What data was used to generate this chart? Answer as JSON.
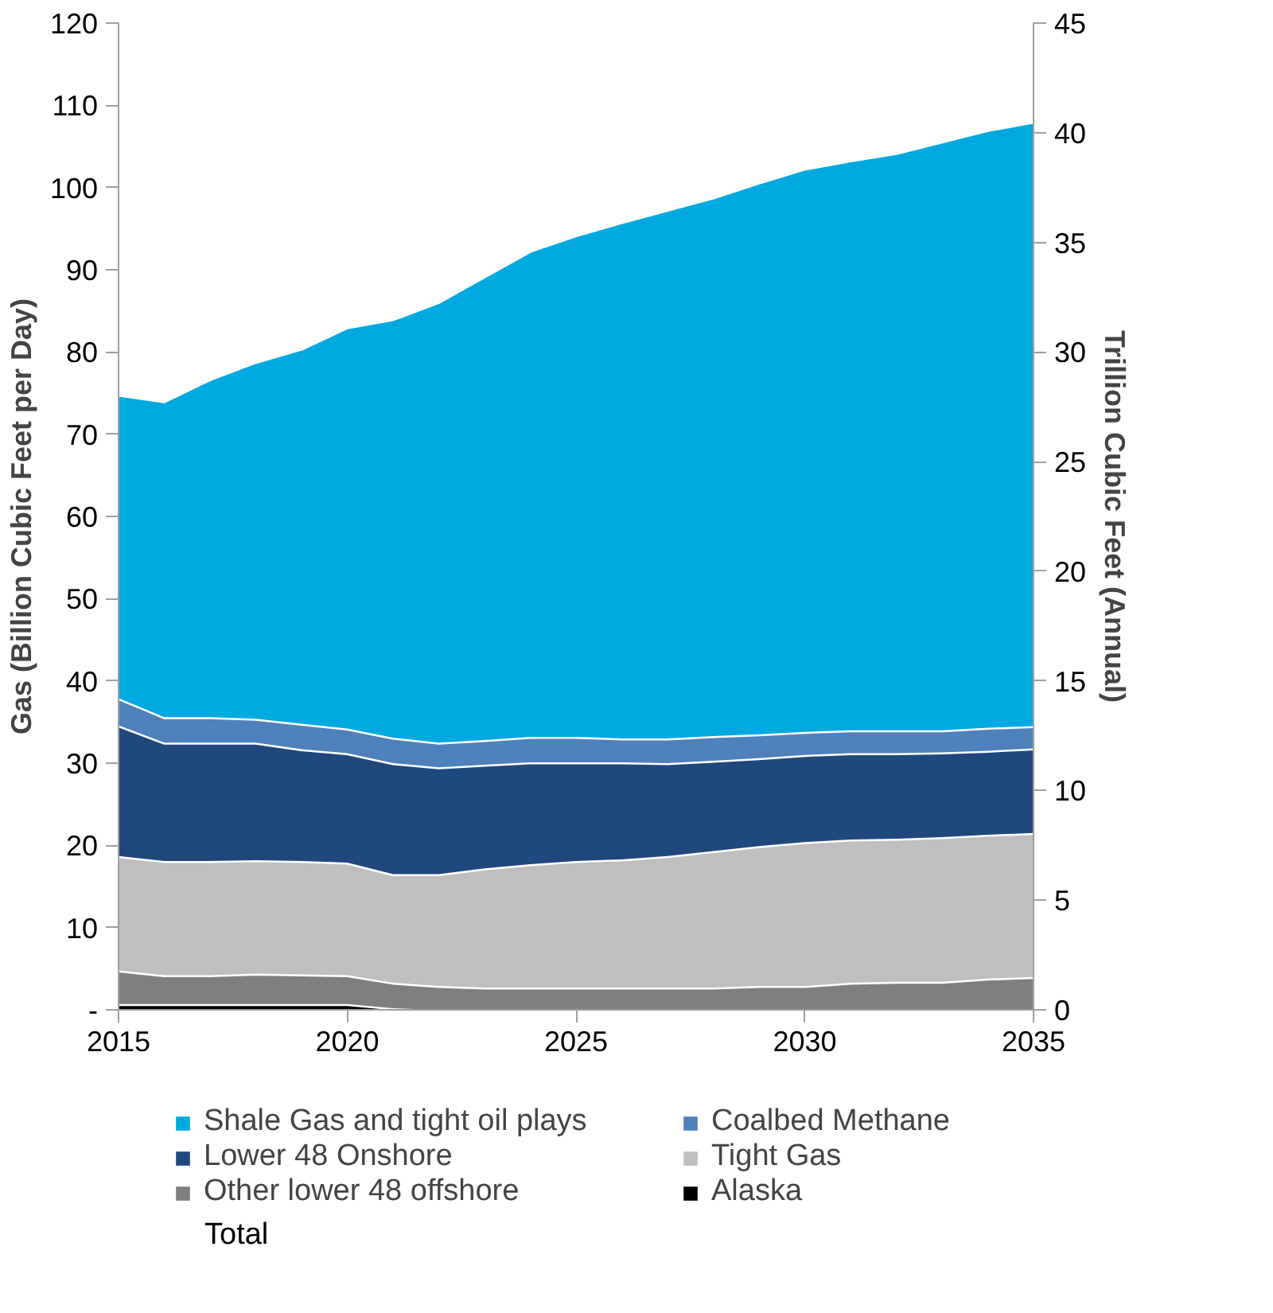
{
  "chart_data": {
    "type": "area",
    "stacked": true,
    "ylabel": "Gas (Billion Cubic Feet per Day)",
    "y2label": "Trillion Cubic Feet (Annual)",
    "x": [
      2015,
      2016,
      2017,
      2018,
      2019,
      2020,
      2021,
      2022,
      2023,
      2024,
      2025,
      2026,
      2027,
      2028,
      2029,
      2030,
      2031,
      2032,
      2033,
      2034,
      2035
    ],
    "xlim": [
      2015,
      2035
    ],
    "xticks": [
      2015,
      2020,
      2025,
      2030,
      2035
    ],
    "ylim": [
      0,
      120
    ],
    "yticks": [
      {
        "value": 0,
        "label": "-"
      },
      10,
      20,
      30,
      40,
      50,
      60,
      70,
      80,
      90,
      100,
      110,
      120
    ],
    "y2lim": [
      0,
      45
    ],
    "y2ticks": [
      0,
      5,
      10,
      15,
      20,
      25,
      30,
      35,
      40,
      45
    ],
    "grid": false,
    "legend": "bottom",
    "annotations": [
      "Total"
    ],
    "series": [
      {
        "name": "Alaska",
        "color": "#000000",
        "values": [
          0.7,
          0.7,
          0.7,
          0.7,
          0.7,
          0.7,
          0.2,
          0,
          0,
          0,
          0,
          0,
          0,
          0,
          0,
          0,
          0,
          0,
          0,
          0,
          0
        ]
      },
      {
        "name": "Other lower 48 offshore",
        "color": "#7f7f7f",
        "values": [
          4.1,
          3.5,
          3.5,
          3.7,
          3.6,
          3.5,
          3.1,
          2.9,
          2.7,
          2.7,
          2.7,
          2.7,
          2.7,
          2.7,
          2.9,
          2.9,
          3.3,
          3.4,
          3.4,
          3.8,
          4.0
        ]
      },
      {
        "name": "Tight Gas",
        "color": "#bfbfbf",
        "values": [
          13.9,
          13.9,
          13.9,
          13.8,
          13.8,
          13.7,
          13.2,
          13.6,
          14.5,
          15.0,
          15.4,
          15.6,
          16.0,
          16.6,
          17.0,
          17.5,
          17.4,
          17.4,
          17.6,
          17.5,
          17.5
        ]
      },
      {
        "name": "Lower 48 Onshore",
        "color": "#1f497d",
        "values": [
          15.9,
          14.4,
          14.4,
          14.3,
          13.6,
          13.3,
          13.5,
          13.0,
          12.6,
          12.4,
          12.0,
          11.8,
          11.3,
          11.0,
          10.7,
          10.6,
          10.5,
          10.4,
          10.3,
          10.2,
          10.3
        ]
      },
      {
        "name": "Coalbed Methane",
        "color": "#4f81bd",
        "values": [
          3.3,
          3.1,
          3.1,
          2.9,
          3.1,
          3.0,
          3.1,
          3.0,
          3.0,
          3.1,
          3.1,
          2.9,
          3.0,
          3.0,
          2.9,
          2.8,
          2.8,
          2.8,
          2.7,
          2.8,
          2.7
        ]
      },
      {
        "name": "Shale Gas and tight oil plays",
        "color": "#00a9e0",
        "values": [
          36.9,
          38.4,
          41.1,
          43.4,
          45.6,
          48.8,
          50.9,
          53.6,
          56.4,
          59.1,
          61.0,
          62.8,
          64.3,
          65.5,
          67.1,
          68.5,
          69.3,
          70.2,
          71.6,
          72.7,
          73.5
        ]
      }
    ]
  }
}
